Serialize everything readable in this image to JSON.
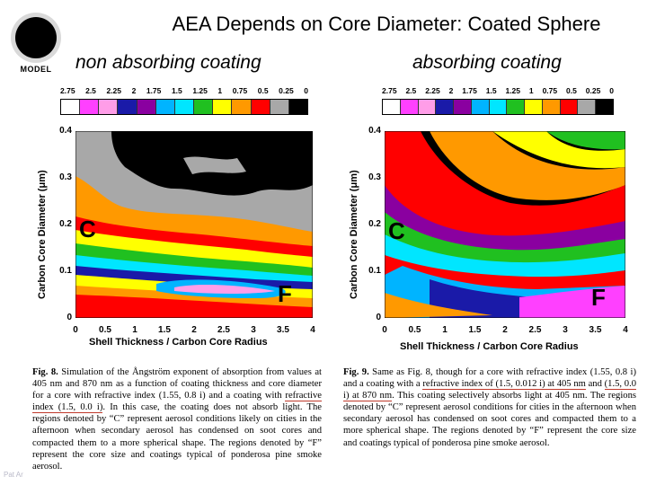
{
  "slide": {
    "title": "AEA Depends on Core Diameter: Coated Sphere",
    "logo_text": "MODEL",
    "subtitle_left": "non absorbing coating",
    "subtitle_right": "absorbing coating",
    "footer_fragment": "Pat Ar"
  },
  "legend": {
    "ticks": [
      "2.75",
      "2.5",
      "2.25",
      "2",
      "1.75",
      "1.5",
      "1.25",
      "1",
      "0.75",
      "0.5",
      "0.25",
      "0"
    ],
    "colors": [
      "#ffffff",
      "#ff40ff",
      "#ff9de8",
      "#1a1aa8",
      "#8a00a0",
      "#00b4ff",
      "#00e6ff",
      "#20c020",
      "#ffff00",
      "#ff9900",
      "#ff0000",
      "#a8a8a8",
      "#000000"
    ]
  },
  "chart_data": [
    {
      "type": "heatmap",
      "title": "non absorbing coating",
      "xlabel": "Shell Thickness / Carbon Core Radius",
      "ylabel": "Carbon Core Diameter (μm)",
      "xticks": [
        "0",
        "0.5",
        "1",
        "1.5",
        "2",
        "2.5",
        "3",
        "3.5",
        "4"
      ],
      "yticks": [
        "0",
        "0.1",
        "0.2",
        "0.3",
        "0.4"
      ],
      "xlim": [
        0,
        4
      ],
      "ylim": [
        0,
        0.4
      ],
      "annotations": [
        "C",
        "F"
      ],
      "colorbar_ticks": [
        "2.75",
        "2.5",
        "2.25",
        "2",
        "1.75",
        "1.5",
        "1.25",
        "1",
        "0.75",
        "0.5",
        "0.25",
        "0"
      ]
    },
    {
      "type": "heatmap",
      "title": "absorbing coating",
      "xlabel": "Shell Thickness / Carbon Core Radius",
      "ylabel": "Carbon Core Diameter (μm)",
      "xticks": [
        "0",
        "0.5",
        "1",
        "1.5",
        "2",
        "2.5",
        "3",
        "3.5",
        "4"
      ],
      "yticks": [
        "0",
        "0.1",
        "0.2",
        "0.3",
        "0.4"
      ],
      "xlim": [
        0,
        4
      ],
      "ylim": [
        0,
        0.4
      ],
      "annotations": [
        "C",
        "F"
      ],
      "colorbar_ticks": [
        "2.75",
        "2.5",
        "2.25",
        "2",
        "1.75",
        "1.5",
        "1.25",
        "1",
        "0.75",
        "0.5",
        "0.25",
        "0"
      ]
    }
  ],
  "captions": {
    "left": {
      "label": "Fig. 8.",
      "pre": " Simulation of the Ångström exponent of absorption from values at 405 nm and 870 nm as a function of coating thickness and core diameter for a core with refractive index (1.55, 0.8 i) and a coating with ",
      "underlined": "refractive index (1.5, 0.0 i)",
      "post": ". In this case, the coating does not absorb light. The regions denoted by “C” represent aerosol conditions likely on cities in the afternoon when secondary aerosol has condensed on soot cores and compacted them to a more spherical shape. The regions denoted by “F” represent the core size and coatings typical of ponderosa pine smoke aerosol."
    },
    "right": {
      "label": "Fig. 9.",
      "pre": " Same as Fig. 8, though for a core with refractive index (1.55, 0.8 i) and a coating with a ",
      "underlined1": "refractive index of (1.5, 0.012 i) at 405 nm",
      "mid": " and ",
      "underlined2": "(1.5, 0.0 i) at 870 nm",
      "post": ". This coating selectively absorbs light at 405 nm. The regions denoted by “C” represent aerosol conditions for cities in the afternoon when secondary aerosol has condensed on soot cores and compacted them to a more spherical shape. The regions denoted by “F” represent the core size and coatings typical of ponderosa pine smoke aerosol."
    }
  }
}
